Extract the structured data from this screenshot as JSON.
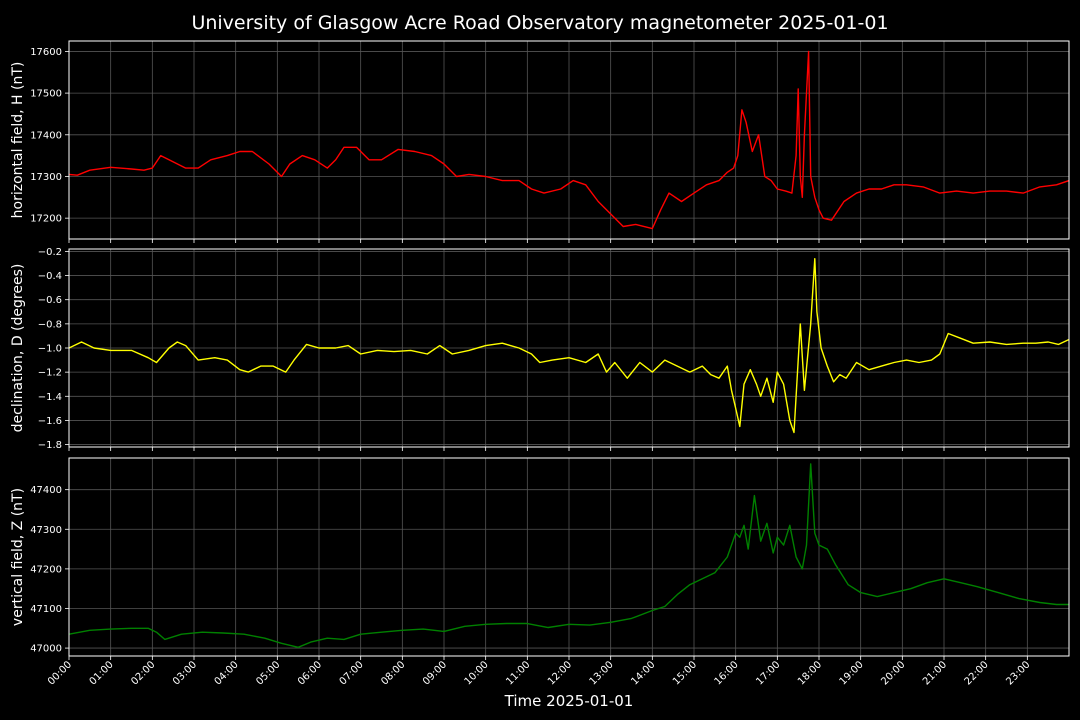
{
  "chart_data": {
    "type": "line",
    "title": "University of Glasgow Acre Road Observatory magnetometer 2025-01-01",
    "xlabel": "Time 2025-01-01",
    "x_ticks": [
      "00:00",
      "01:00",
      "02:00",
      "03:00",
      "04:00",
      "05:00",
      "06:00",
      "07:00",
      "08:00",
      "09:00",
      "10:00",
      "11:00",
      "12:00",
      "13:00",
      "14:00",
      "15:00",
      "16:00",
      "17:00",
      "18:00",
      "19:00",
      "20:00",
      "21:00",
      "22:00",
      "23:00"
    ],
    "xlim_hours": [
      0,
      24
    ],
    "grid": true,
    "colors": {
      "background": "#000000",
      "grid": "#555555",
      "text": "#ffffff"
    },
    "panels": [
      {
        "ylabel": "horizontal field, H (nT)",
        "color": "#ff0000",
        "ylim": [
          17150,
          17625
        ],
        "y_ticks": [
          17200,
          17300,
          17400,
          17500,
          17600
        ],
        "y_tick_labels": [
          "17200",
          "17300",
          "17400",
          "17500",
          "17600"
        ],
        "hours": [
          0,
          0.2,
          0.5,
          1,
          1.5,
          1.8,
          2.0,
          2.2,
          2.4,
          2.8,
          3.1,
          3.4,
          3.8,
          4.1,
          4.4,
          4.8,
          5.1,
          5.3,
          5.6,
          5.9,
          6.2,
          6.4,
          6.6,
          6.9,
          7.2,
          7.5,
          7.9,
          8.3,
          8.7,
          9.0,
          9.3,
          9.6,
          10.0,
          10.4,
          10.8,
          11.1,
          11.4,
          11.8,
          12.1,
          12.4,
          12.7,
          13.0,
          13.3,
          13.6,
          14.0,
          14.2,
          14.4,
          14.7,
          15.0,
          15.3,
          15.6,
          15.8,
          15.95,
          16.05,
          16.15,
          16.25,
          16.4,
          16.55,
          16.7,
          16.85,
          17.0,
          17.2,
          17.35,
          17.45,
          17.5,
          17.55,
          17.6,
          17.65,
          17.75,
          17.8,
          17.9,
          18.0,
          18.1,
          18.3,
          18.6,
          18.9,
          19.2,
          19.5,
          19.8,
          20.1,
          20.5,
          20.9,
          21.3,
          21.7,
          22.1,
          22.5,
          22.9,
          23.3,
          23.7,
          24.0
        ],
        "values": [
          17305,
          17303,
          17315,
          17322,
          17318,
          17315,
          17320,
          17350,
          17340,
          17320,
          17320,
          17340,
          17350,
          17360,
          17360,
          17330,
          17300,
          17330,
          17350,
          17340,
          17320,
          17340,
          17370,
          17370,
          17340,
          17340,
          17365,
          17360,
          17350,
          17330,
          17300,
          17305,
          17300,
          17290,
          17290,
          17270,
          17260,
          17270,
          17290,
          17280,
          17240,
          17210,
          17180,
          17185,
          17175,
          17220,
          17260,
          17240,
          17260,
          17280,
          17290,
          17310,
          17320,
          17350,
          17460,
          17430,
          17360,
          17400,
          17300,
          17290,
          17270,
          17265,
          17260,
          17350,
          17510,
          17300,
          17250,
          17400,
          17600,
          17300,
          17250,
          17220,
          17200,
          17195,
          17240,
          17260,
          17270,
          17270,
          17280,
          17280,
          17275,
          17260,
          17265,
          17260,
          17265,
          17265,
          17260,
          17275,
          17280,
          17290
        ]
      },
      {
        "ylabel": "declination, D (degrees)",
        "color": "#ffff00",
        "ylim": [
          -1.82,
          -0.18
        ],
        "y_ticks": [
          -1.8,
          -1.6,
          -1.4,
          -1.2,
          -1.0,
          -0.8,
          -0.6,
          -0.4,
          -0.2
        ],
        "y_tick_labels": [
          "−1.8",
          "−1.6",
          "−1.4",
          "−1.2",
          "−1.0",
          "−0.8",
          "−0.6",
          "−0.4",
          "−0.2"
        ],
        "hours": [
          0,
          0.3,
          0.6,
          1,
          1.5,
          1.9,
          2.1,
          2.4,
          2.6,
          2.8,
          3.1,
          3.5,
          3.8,
          4.1,
          4.3,
          4.6,
          4.9,
          5.2,
          5.4,
          5.7,
          6.0,
          6.4,
          6.7,
          7.0,
          7.4,
          7.8,
          8.2,
          8.6,
          8.9,
          9.2,
          9.6,
          10.0,
          10.4,
          10.8,
          11.1,
          11.3,
          11.6,
          12.0,
          12.4,
          12.7,
          12.9,
          13.1,
          13.4,
          13.7,
          14.0,
          14.3,
          14.6,
          14.9,
          15.2,
          15.4,
          15.6,
          15.8,
          15.9,
          16.0,
          16.1,
          16.2,
          16.35,
          16.5,
          16.6,
          16.75,
          16.9,
          17.0,
          17.15,
          17.3,
          17.4,
          17.5,
          17.55,
          17.65,
          17.8,
          17.9,
          17.95,
          18.05,
          18.2,
          18.35,
          18.5,
          18.65,
          18.9,
          19.2,
          19.5,
          19.8,
          20.1,
          20.4,
          20.7,
          20.9,
          21.1,
          21.4,
          21.7,
          22.1,
          22.5,
          22.9,
          23.2,
          23.5,
          23.75,
          24.0
        ],
        "values": [
          -1.0,
          -0.95,
          -1.0,
          -1.02,
          -1.02,
          -1.08,
          -1.12,
          -1.0,
          -0.95,
          -0.98,
          -1.1,
          -1.08,
          -1.1,
          -1.18,
          -1.2,
          -1.15,
          -1.15,
          -1.2,
          -1.1,
          -0.97,
          -1.0,
          -1.0,
          -0.98,
          -1.05,
          -1.02,
          -1.03,
          -1.02,
          -1.05,
          -0.98,
          -1.05,
          -1.02,
          -0.98,
          -0.96,
          -1.0,
          -1.05,
          -1.12,
          -1.1,
          -1.08,
          -1.12,
          -1.05,
          -1.2,
          -1.12,
          -1.25,
          -1.12,
          -1.2,
          -1.1,
          -1.15,
          -1.2,
          -1.15,
          -1.22,
          -1.25,
          -1.15,
          -1.35,
          -1.5,
          -1.65,
          -1.3,
          -1.18,
          -1.3,
          -1.4,
          -1.25,
          -1.45,
          -1.2,
          -1.3,
          -1.6,
          -1.7,
          -1.1,
          -0.8,
          -1.35,
          -0.8,
          -0.26,
          -0.7,
          -1.0,
          -1.15,
          -1.28,
          -1.22,
          -1.25,
          -1.12,
          -1.18,
          -1.15,
          -1.12,
          -1.1,
          -1.12,
          -1.1,
          -1.05,
          -0.88,
          -0.92,
          -0.96,
          -0.95,
          -0.97,
          -0.96,
          -0.96,
          -0.95,
          -0.97,
          -0.93
        ]
      },
      {
        "ylabel": "vertical field, Z (nT)",
        "color": "#008000",
        "ylim": [
          46980,
          47480
        ],
        "y_ticks": [
          47000,
          47100,
          47200,
          47300,
          47400
        ],
        "y_tick_labels": [
          "47000",
          "47100",
          "47200",
          "47300",
          "47400"
        ],
        "hours": [
          0,
          0.5,
          1,
          1.5,
          1.9,
          2.1,
          2.3,
          2.7,
          3.2,
          3.7,
          4.2,
          4.7,
          5.1,
          5.5,
          5.8,
          6.2,
          6.6,
          7.0,
          7.5,
          8.0,
          8.5,
          9.0,
          9.5,
          10.0,
          10.5,
          11.0,
          11.5,
          12.0,
          12.5,
          13.0,
          13.5,
          14.0,
          14.3,
          14.6,
          14.9,
          15.2,
          15.5,
          15.8,
          16.0,
          16.1,
          16.2,
          16.3,
          16.45,
          16.6,
          16.75,
          16.9,
          17.0,
          17.15,
          17.3,
          17.45,
          17.6,
          17.7,
          17.8,
          17.9,
          18.0,
          18.2,
          18.4,
          18.7,
          19.0,
          19.4,
          19.8,
          20.2,
          20.6,
          21.0,
          21.4,
          21.8,
          22.3,
          22.8,
          23.3,
          23.7,
          24.0
        ],
        "values": [
          47035,
          47045,
          47048,
          47050,
          47050,
          47040,
          47022,
          47035,
          47040,
          47038,
          47035,
          47025,
          47012,
          47002,
          47015,
          47025,
          47022,
          47035,
          47040,
          47045,
          47048,
          47042,
          47055,
          47060,
          47062,
          47062,
          47052,
          47060,
          47058,
          47065,
          47075,
          47095,
          47105,
          47135,
          47160,
          47175,
          47190,
          47230,
          47290,
          47280,
          47310,
          47250,
          47385,
          47270,
          47315,
          47240,
          47280,
          47260,
          47310,
          47230,
          47200,
          47260,
          47465,
          47290,
          47260,
          47250,
          47210,
          47160,
          47140,
          47130,
          47140,
          47150,
          47165,
          47175,
          47165,
          47155,
          47140,
          47125,
          47115,
          47110,
          47110
        ]
      }
    ]
  }
}
